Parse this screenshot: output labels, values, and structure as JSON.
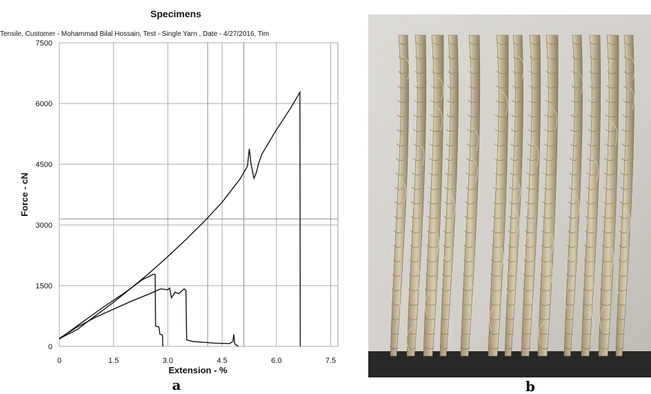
{
  "panel_a": {
    "letter": "a"
  },
  "panel_b": {
    "letter": "b",
    "photo_description_icon": "jute-yarn-photo"
  },
  "chart_data": {
    "type": "line",
    "title": "Specimens",
    "subtitle": "Tensile, Customer -  Mohammad Bilal Hossain, Test - Single Yarn , Date - 4/27/2016, Tim",
    "xlabel": "Extension - %",
    "ylabel": "Force - cN",
    "xlim": [
      0,
      7.7
    ],
    "ylim": [
      0,
      7500
    ],
    "xticks": [
      0,
      1.5,
      3.0,
      4.5,
      6.0,
      7.5
    ],
    "xtick_labels": [
      "0",
      "1.5",
      "3.0",
      "4.5",
      "6.0",
      "7.5"
    ],
    "yticks": [
      0,
      1500,
      3000,
      4500,
      6000,
      7500
    ],
    "ytick_labels": [
      "0",
      "1500",
      "3000",
      "4500",
      "6000",
      "7500"
    ],
    "grid": true,
    "extra_gridlines_x": [
      4.1,
      5.1
    ],
    "extra_gridlines_y": [
      3150
    ],
    "series": [
      {
        "values_xy": [
          [
            0,
            180
          ],
          [
            0.3,
            380
          ],
          [
            0.7,
            640
          ],
          [
            1.2,
            960
          ],
          [
            1.8,
            1320
          ],
          [
            2.3,
            1650
          ],
          [
            2.6,
            1780
          ],
          [
            2.65,
            1780
          ],
          [
            2.66,
            500
          ],
          [
            2.75,
            480
          ],
          [
            2.78,
            300
          ],
          [
            2.85,
            280
          ],
          [
            2.86,
            0
          ]
        ]
      },
      {
        "values_xy": [
          [
            0,
            200
          ],
          [
            0.5,
            480
          ],
          [
            1.0,
            720
          ],
          [
            1.5,
            920
          ],
          [
            2.0,
            1120
          ],
          [
            2.5,
            1300
          ],
          [
            2.8,
            1420
          ],
          [
            3.0,
            1400
          ],
          [
            3.05,
            1440
          ],
          [
            3.1,
            1200
          ],
          [
            3.2,
            1340
          ],
          [
            3.3,
            1300
          ],
          [
            3.45,
            1420
          ],
          [
            3.5,
            1380
          ],
          [
            3.52,
            160
          ],
          [
            3.7,
            120
          ],
          [
            4.0,
            100
          ],
          [
            4.3,
            80
          ],
          [
            4.7,
            70
          ],
          [
            4.8,
            120
          ],
          [
            4.82,
            300
          ],
          [
            4.85,
            60
          ],
          [
            4.95,
            0
          ]
        ]
      },
      {
        "values_xy": [
          [
            0,
            190
          ],
          [
            0.5,
            420
          ],
          [
            1.0,
            760
          ],
          [
            1.5,
            1090
          ],
          [
            2.0,
            1450
          ],
          [
            2.5,
            1820
          ],
          [
            3.0,
            2220
          ],
          [
            3.5,
            2640
          ],
          [
            4.0,
            3080
          ],
          [
            4.5,
            3560
          ],
          [
            5.0,
            4140
          ],
          [
            5.2,
            4450
          ],
          [
            5.25,
            4880
          ],
          [
            5.3,
            4500
          ],
          [
            5.38,
            4150
          ],
          [
            5.45,
            4300
          ],
          [
            5.5,
            4500
          ],
          [
            5.6,
            4750
          ],
          [
            5.8,
            5050
          ],
          [
            6.0,
            5350
          ],
          [
            6.2,
            5620
          ],
          [
            6.4,
            5900
          ],
          [
            6.6,
            6200
          ],
          [
            6.65,
            6280
          ],
          [
            6.66,
            0
          ]
        ]
      }
    ]
  }
}
